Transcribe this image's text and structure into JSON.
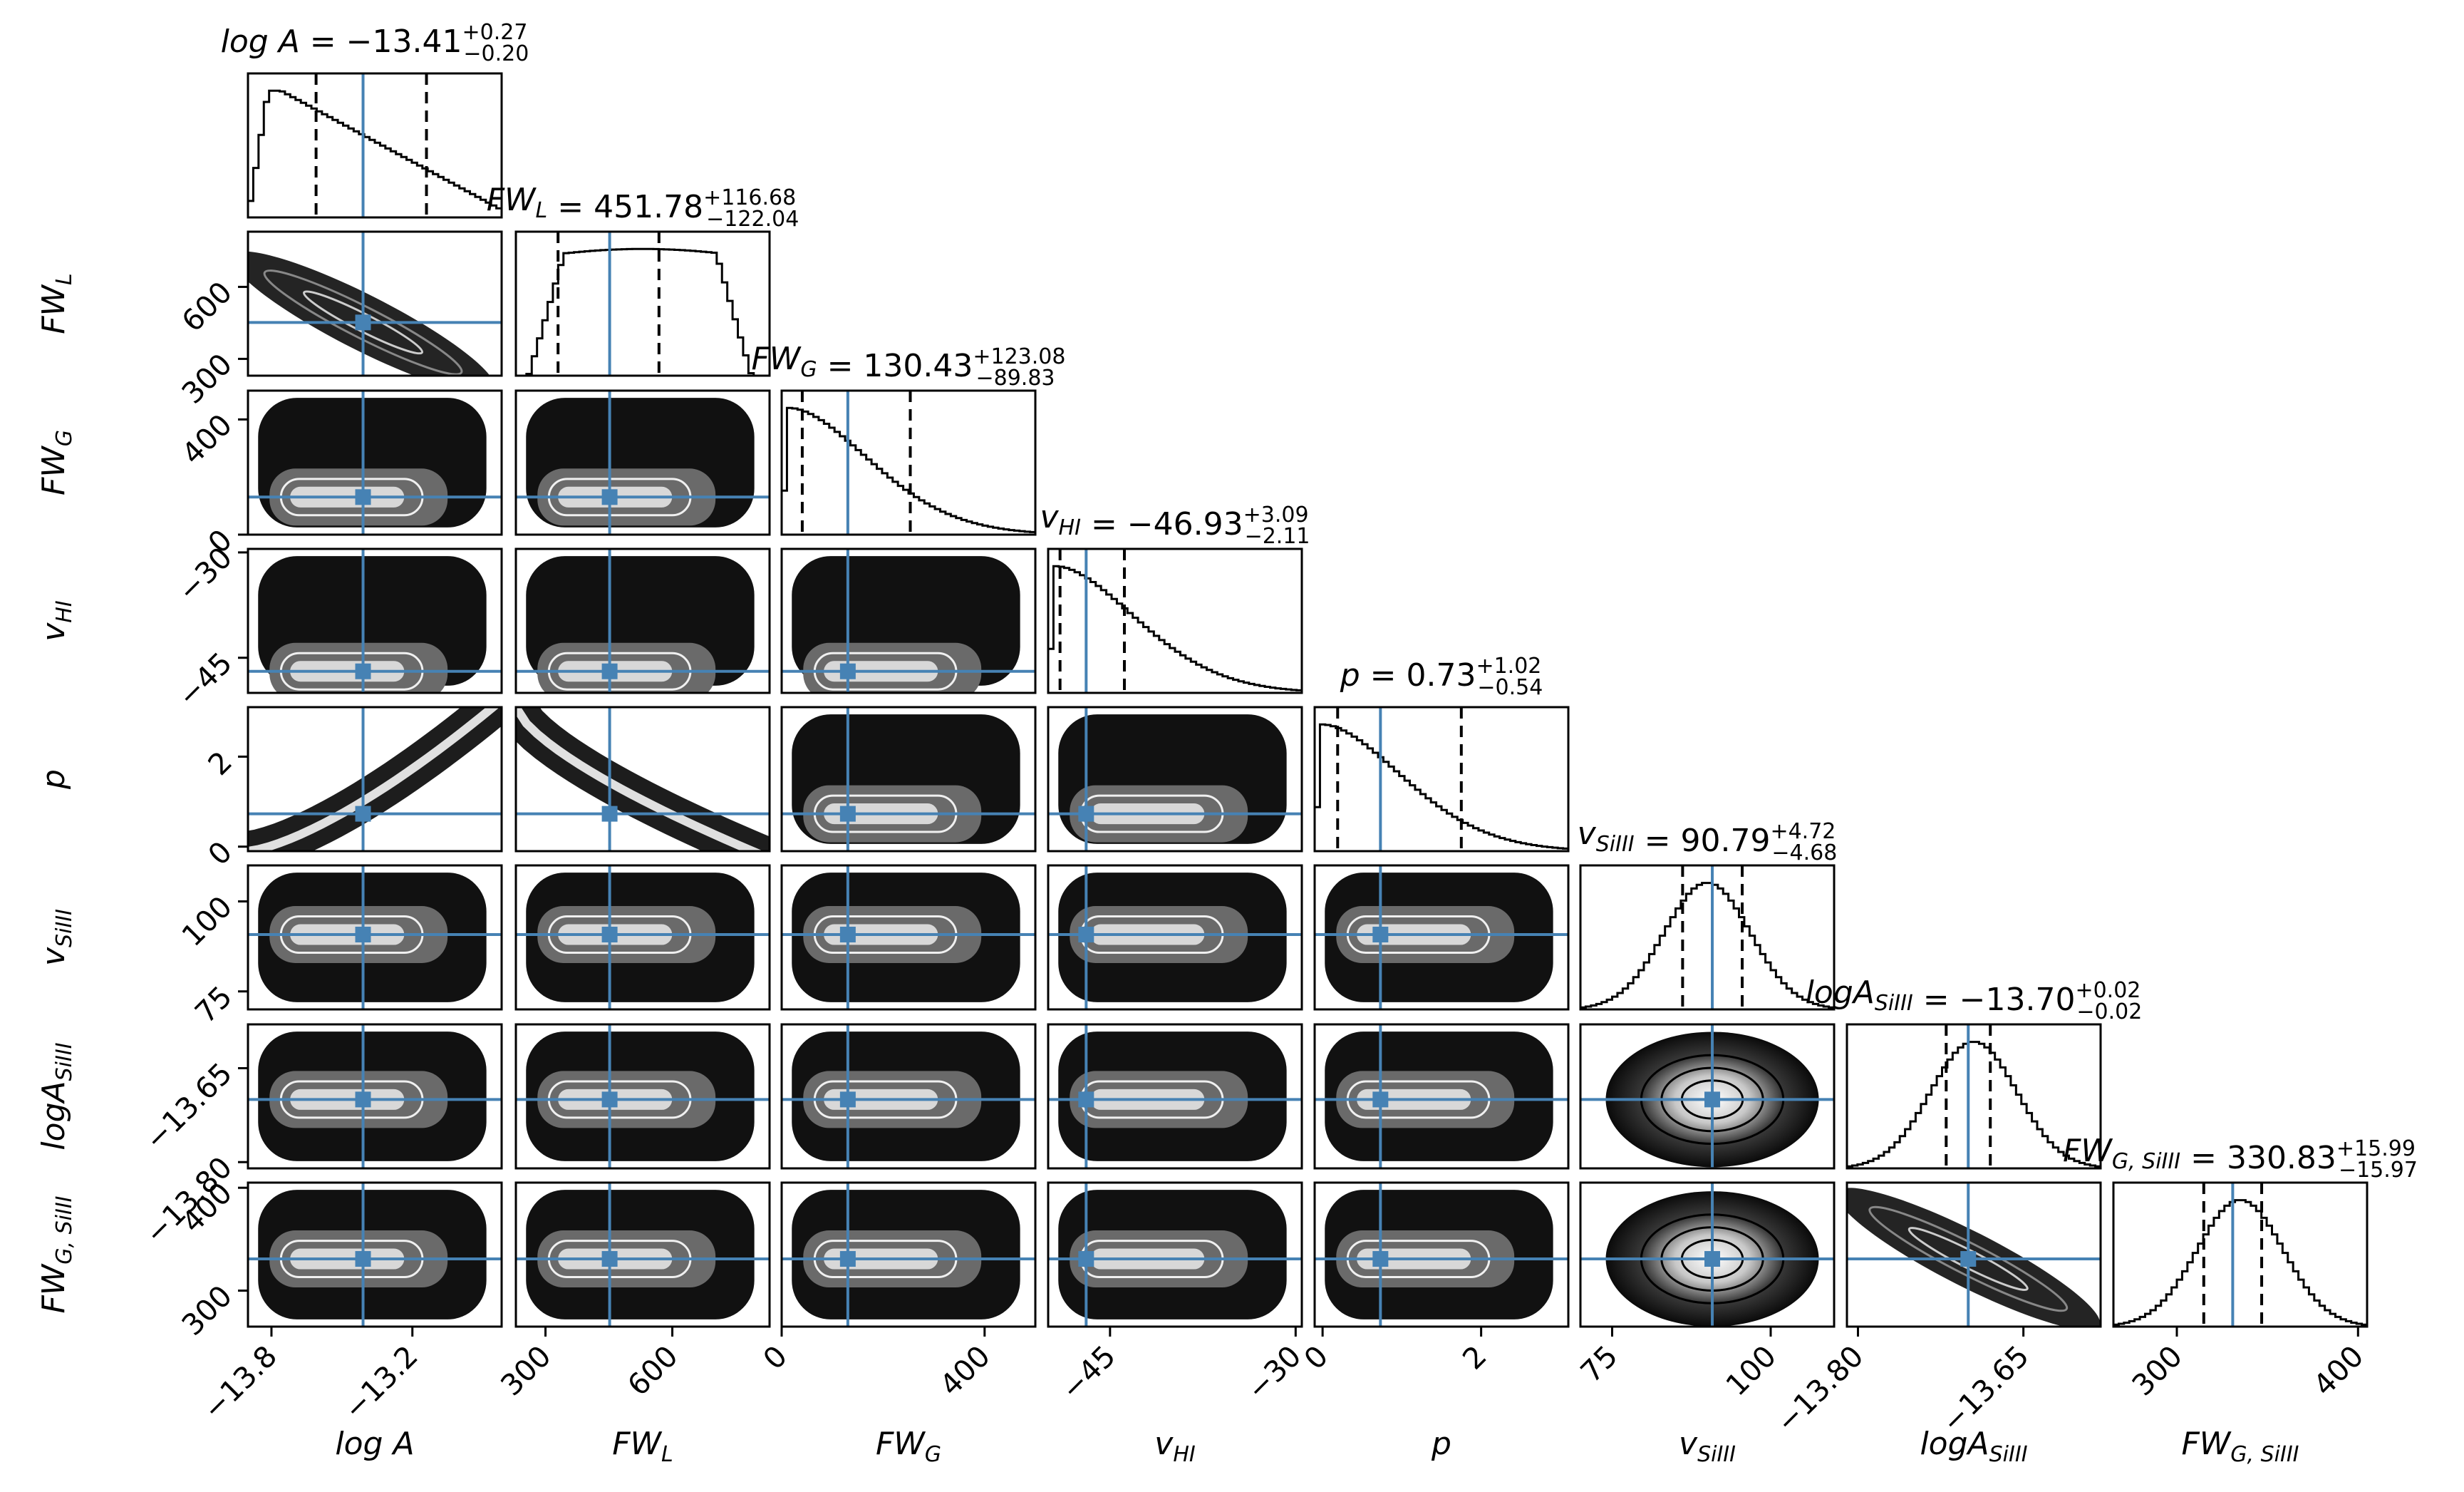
{
  "chart_data": {
    "type": "corner",
    "parameters": [
      {
        "key": "logA",
        "label": "log A",
        "value": "-13.41",
        "plus": "0.27",
        "minus": "0.20",
        "range": [
          -13.9,
          -12.82
        ],
        "ticks": [
          -13.8,
          -13.2
        ],
        "tick_labels": [
          "−13.8",
          "−13.2"
        ],
        "median": -13.41,
        "q16": -13.61,
        "q84": -13.14,
        "hist_shape": "skewed"
      },
      {
        "key": "FWL",
        "label": "FW_L",
        "value": "451.78",
        "plus": "116.68",
        "minus": "122.04",
        "range": [
          230,
          830
        ],
        "ticks": [
          300,
          600
        ],
        "tick_labels": [
          "300",
          "600"
        ],
        "median": 451.78,
        "q16": 329.74,
        "q84": 568.46,
        "hist_shape": "flat"
      },
      {
        "key": "FWG",
        "label": "FW_G",
        "value": "130.43",
        "plus": "123.08",
        "minus": "89.83",
        "range": [
          0,
          500
        ],
        "ticks": [
          0,
          400
        ],
        "tick_labels": [
          "0",
          "400"
        ],
        "median": 130.43,
        "q16": 40.6,
        "q84": 253.51,
        "hist_shape": "decay"
      },
      {
        "key": "vHI",
        "label": "v_HI",
        "value": "-46.93",
        "plus": "3.09",
        "minus": "2.11",
        "range": [
          -50,
          -29.5
        ],
        "ticks": [
          -45,
          -30
        ],
        "tick_labels": [
          "−45",
          "−30"
        ],
        "median": -46.93,
        "q16": -49.04,
        "q84": -43.84,
        "hist_shape": "decay"
      },
      {
        "key": "p",
        "label": "p",
        "value": "0.73",
        "plus": "1.02",
        "minus": "0.54",
        "range": [
          -0.1,
          3.1
        ],
        "ticks": [
          0,
          2
        ],
        "tick_labels": [
          "0",
          "2"
        ],
        "median": 0.73,
        "q16": 0.19,
        "q84": 1.75,
        "hist_shape": "decay"
      },
      {
        "key": "vSiIII",
        "label": "v_SiIII",
        "value": "90.79",
        "plus": "4.72",
        "minus": "4.68",
        "range": [
          70,
          110
        ],
        "ticks": [
          75,
          100
        ],
        "tick_labels": [
          "75",
          "100"
        ],
        "median": 90.79,
        "q16": 86.11,
        "q84": 95.51,
        "hist_shape": "gauss"
      },
      {
        "key": "logASiIII",
        "label": "logA_SiIII",
        "value": "-13.70",
        "plus": "0.02",
        "minus": "0.02",
        "range": [
          -13.81,
          -13.58
        ],
        "ticks": [
          -13.8,
          -13.65
        ],
        "tick_labels": [
          "−13.80",
          "−13.65"
        ],
        "median": -13.7,
        "q16": -13.72,
        "q84": -13.68,
        "hist_shape": "gauss"
      },
      {
        "key": "FWGSiIII",
        "label": "FW_G,SiIII",
        "value": "330.83",
        "plus": "15.99",
        "minus": "15.97",
        "range": [
          265,
          405
        ],
        "ticks": [
          300,
          400
        ],
        "tick_labels": [
          "300",
          "400"
        ],
        "median": 330.83,
        "q16": 314.86,
        "q84": 346.82,
        "hist_shape": "gauss"
      }
    ],
    "y_axis_labels": [
      "FW_L",
      "FW_G",
      "v_HI",
      "p",
      "v_SiIII",
      "logA_SiIII",
      "FW_G,SiIII"
    ],
    "x_axis_labels": [
      "log A",
      "FW_L",
      "FW_G",
      "v_HI",
      "p",
      "v_SiIII",
      "logA_SiIII",
      "FW_G,SiIII"
    ],
    "truth_color": "#4682b4",
    "quantile_line_color": "#000000",
    "contour_color": "#000000"
  }
}
